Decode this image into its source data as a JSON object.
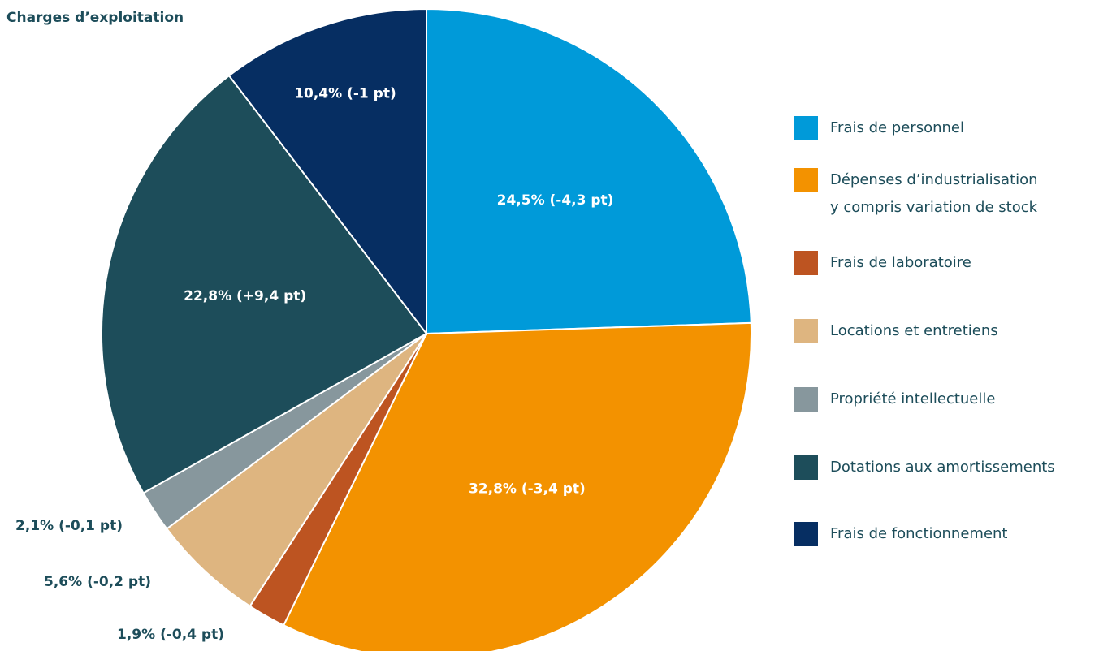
{
  "chart_data": {
    "type": "pie",
    "title": "Charges d’exploitation",
    "categories": [
      "Frais de personnel",
      "Dépenses d’industrialisation\ny compris variation de stock",
      "Frais de laboratoire",
      "Locations et entretiens",
      "Propriété intellectuelle",
      "Dotations aux amortissements",
      "Frais de fonctionnement"
    ],
    "values": [
      24.5,
      32.8,
      1.9,
      5.6,
      2.1,
      22.8,
      10.4
    ],
    "value_labels": [
      "24,5% (-4,3 pt)",
      "32,8% (-3,4 pt)",
      "1,9% (-0,4 pt)",
      "5,6% (-0,2 pt)",
      "2,1% (-0,1 pt)",
      "22,8% (+9,4 pt)",
      "10,4% (-1 pt)"
    ],
    "colors": [
      "#009ad9",
      "#f39200",
      "#bd5421",
      "#deb580",
      "#87979d",
      "#1d4d5a",
      "#062e62"
    ],
    "legend": "right"
  }
}
